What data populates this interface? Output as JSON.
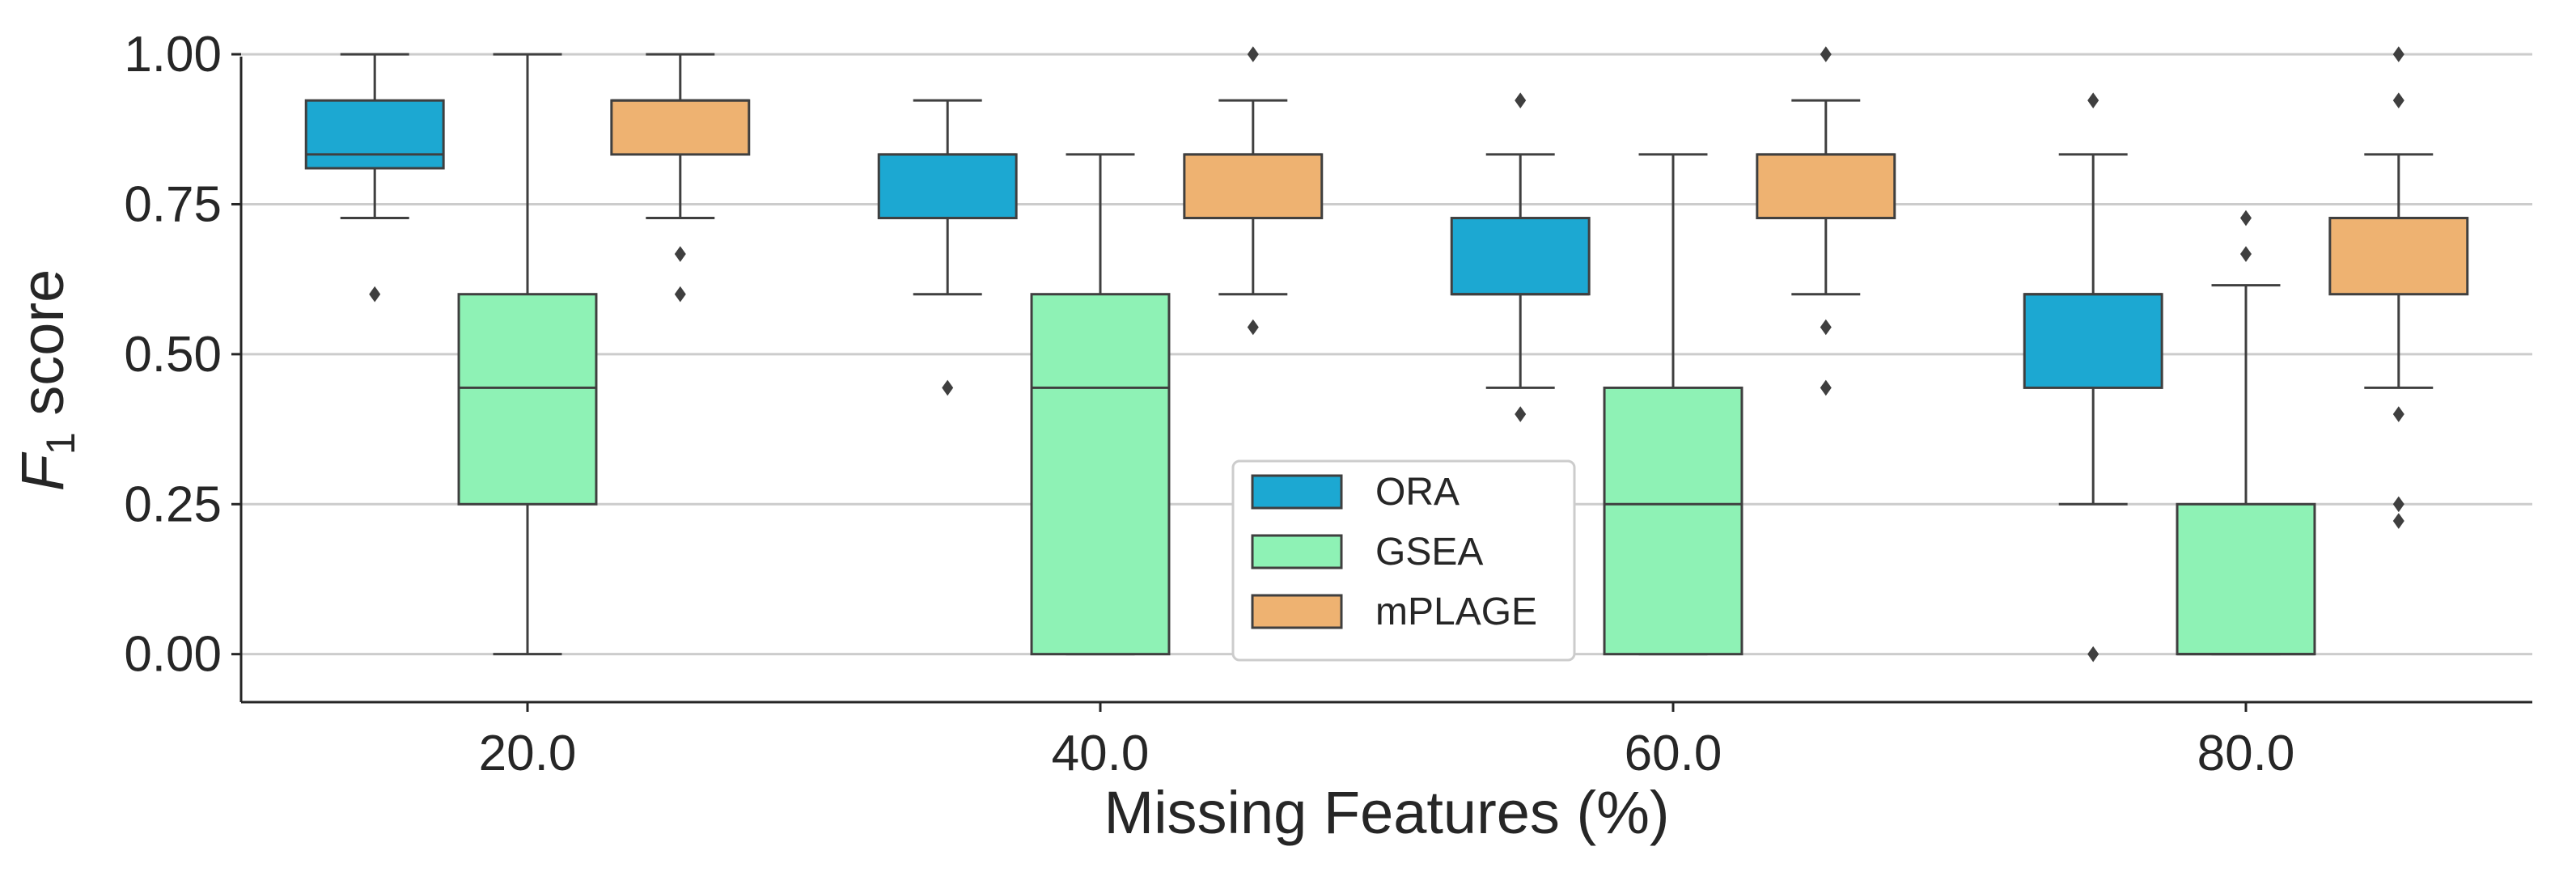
{
  "chart_data": {
    "type": "box",
    "xlabel": "Missing Features (%)",
    "ylabel_main": "F",
    "ylabel_sub": "1",
    "ylabel_rest": " score",
    "ylim": [
      -0.08,
      1.05
    ],
    "yticks": [
      0.0,
      0.25,
      0.5,
      0.75,
      1.0
    ],
    "ytick_labels": [
      "0.00",
      "0.25",
      "0.50",
      "0.75",
      "1.00"
    ],
    "categories": [
      "20.0",
      "40.0",
      "60.0",
      "80.0"
    ],
    "legend_position": "lower-center",
    "grid": "horizontal",
    "series": [
      {
        "name": "ORA",
        "color": "#1ca8d2",
        "boxes": [
          {
            "q1": 0.81,
            "median": 0.833,
            "q3": 0.923,
            "whisker_low": 0.727,
            "whisker_high": 1.0,
            "outliers": [
              0.6
            ]
          },
          {
            "q1": 0.727,
            "median": 0.833,
            "q3": 0.833,
            "whisker_low": 0.6,
            "whisker_high": 0.923,
            "outliers": [
              0.444
            ]
          },
          {
            "q1": 0.6,
            "median": 0.6,
            "q3": 0.727,
            "whisker_low": 0.444,
            "whisker_high": 0.833,
            "outliers": [
              0.923,
              0.4
            ]
          },
          {
            "q1": 0.444,
            "median": 0.6,
            "q3": 0.6,
            "whisker_low": 0.25,
            "whisker_high": 0.833,
            "outliers": [
              0.923,
              0.0
            ]
          }
        ]
      },
      {
        "name": "GSEA",
        "color": "#8ef2b5",
        "boxes": [
          {
            "q1": 0.25,
            "median": 0.444,
            "q3": 0.6,
            "whisker_low": 0.0,
            "whisker_high": 1.0,
            "outliers": []
          },
          {
            "q1": 0.0,
            "median": 0.444,
            "q3": 0.6,
            "whisker_low": 0.0,
            "whisker_high": 0.833,
            "outliers": []
          },
          {
            "q1": 0.0,
            "median": 0.25,
            "q3": 0.444,
            "whisker_low": 0.0,
            "whisker_high": 0.833,
            "outliers": []
          },
          {
            "q1": 0.0,
            "median": 0.0,
            "q3": 0.25,
            "whisker_low": 0.0,
            "whisker_high": 0.615,
            "outliers": [
              0.727,
              0.667
            ]
          }
        ]
      },
      {
        "name": "mPLAGE",
        "color": "#eeb271",
        "boxes": [
          {
            "q1": 0.833,
            "median": 0.923,
            "q3": 0.923,
            "whisker_low": 0.727,
            "whisker_high": 1.0,
            "outliers": [
              0.667,
              0.6
            ]
          },
          {
            "q1": 0.727,
            "median": 0.833,
            "q3": 0.833,
            "whisker_low": 0.6,
            "whisker_high": 0.923,
            "outliers": [
              1.0,
              0.545
            ]
          },
          {
            "q1": 0.727,
            "median": 0.833,
            "q3": 0.833,
            "whisker_low": 0.6,
            "whisker_high": 0.923,
            "outliers": [
              1.0,
              0.545,
              0.444
            ]
          },
          {
            "q1": 0.6,
            "median": 0.727,
            "q3": 0.727,
            "whisker_low": 0.444,
            "whisker_high": 0.833,
            "outliers": [
              1.0,
              0.923,
              0.4,
              0.25,
              0.222
            ]
          }
        ]
      }
    ]
  }
}
